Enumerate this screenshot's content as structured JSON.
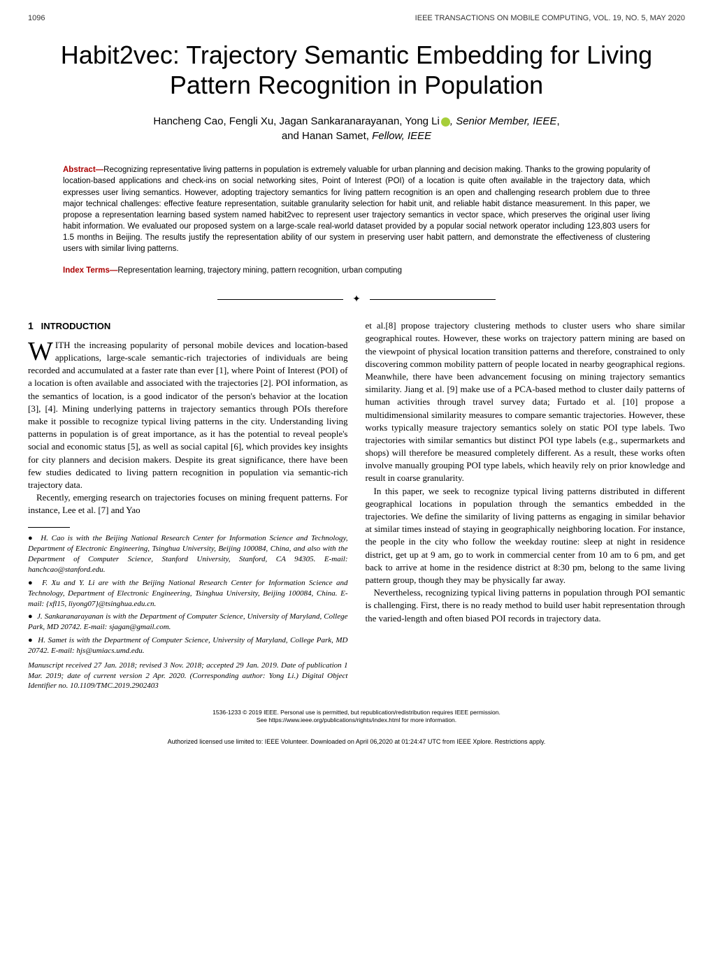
{
  "header": {
    "page_number": "1096",
    "journal": "IEEE TRANSACTIONS ON MOBILE COMPUTING, VOL. 19, NO. 5, MAY 2020"
  },
  "title": "Habit2vec: Trajectory Semantic Embedding for Living Pattern Recognition in Population",
  "authors": {
    "line1": "Hancheng Cao, Fengli Xu, Jagan Sankaranarayanan, Yong Li",
    "orcid": "●",
    "member1": ", Senior Member, IEEE",
    "line2": "and Hanan Samet, Fellow, IEEE"
  },
  "abstract_label": "Abstract—",
  "abstract_text": "Recognizing representative living patterns in population is extremely valuable for urban planning and decision making. Thanks to the growing popularity of location-based applications and check-ins on social networking sites, Point of Interest (POI) of a location is quite often available in the trajectory data, which expresses user living semantics. However, adopting trajectory semantics for living pattern recognition is an open and challenging research problem due to three major technical challenges: effective feature representation, suitable granularity selection for habit unit, and reliable habit distance measurement. In this paper, we propose a representation learning based system named habit2vec to represent user trajectory semantics in vector space, which preserves the original user living habit information. We evaluated our proposed system on a large-scale real-world dataset provided by a popular social network operator including 123,803 users for 1.5 months in Beijing. The results justify the representation ability of our system in preserving user habit pattern, and demonstrate the effectiveness of clustering users with similar living patterns.",
  "index_terms_label": "Index Terms—",
  "index_terms_text": "Representation learning, trajectory mining, pattern recognition, urban computing",
  "section1": {
    "number": "1",
    "title": "INTRODUCTION"
  },
  "col1": {
    "drop_cap": "W",
    "para1": "ITH the increasing popularity of personal mobile devices and location-based applications, large-scale semantic-rich trajectories of individuals are being recorded and accumulated at a faster rate than ever [1], where Point of Interest (POI) of a location is often available and associated with the trajectories [2]. POI information, as the semantics of location, is a good indicator of the person's behavior at the location [3], [4]. Mining underlying patterns in trajectory semantics through POIs therefore make it possible to recognize typical living patterns in the city. Understanding living patterns in population is of great importance, as it has the potential to reveal people's social and economic status [5], as well as social capital [6], which provides key insights for city planners and decision makers. Despite its great significance, there have been few studies dedicated to living pattern recognition in population via semantic-rich trajectory data.",
    "para2": "Recently, emerging research on trajectories focuses on mining frequent patterns. For instance, Lee et al. [7] and Yao"
  },
  "footnotes": {
    "f1": "H. Cao is with the Beijing National Research Center for Information Science and Technology, Department of Electronic Engineering, Tsinghua University, Beijing 100084, China, and also with the Department of Computer Science, Stanford University, Stanford, CA 94305. E-mail: hanchcao@stanford.edu.",
    "f2": "F. Xu and Y. Li are with the Beijing National Research Center for Information Science and Technology, Department of Electronic Engineering, Tsinghua University, Beijing 100084, China. E-mail: {xfl15, liyong07}@tsinghua.edu.cn.",
    "f3": "J. Sankaranarayanan is with the Department of Computer Science, University of Maryland, College Park, MD 20742. E-mail: sjagan@gmail.com.",
    "f4": "H. Samet is with the Department of Computer Science, University of Maryland, College Park, MD 20742. E-mail: hjs@umiacs.umd.edu.",
    "manuscript": "Manuscript received 27 Jan. 2018; revised 3 Nov. 2018; accepted 29 Jan. 2019. Date of publication 1 Mar. 2019; date of current version 2 Apr. 2020. (Corresponding author: Yong Li.) Digital Object Identifier no. 10.1109/TMC.2019.2902403"
  },
  "col2": {
    "para1": "et al.[8] propose trajectory clustering methods to cluster users who share similar geographical routes. However, these works on trajectory pattern mining are based on the viewpoint of physical location transition patterns and therefore, constrained to only discovering common mobility pattern of people located in nearby geographical regions. Meanwhile, there have been advancement focusing on mining trajectory semantics similarity. Jiang et al. [9] make use of a PCA-based method to cluster daily patterns of human activities through travel survey data; Furtado et al. [10] propose a multidimensional similarity measures to compare semantic trajectories. However, these works typically measure trajectory semantics solely on static POI type labels. Two trajectories with similar semantics but distinct POI type labels (e.g., supermarkets and shops) will therefore be measured completely different. As a result, these works often involve manually grouping POI type labels, which heavily rely on prior knowledge and result in coarse granularity.",
    "para2": "In this paper, we seek to recognize typical living patterns distributed in different geographical locations in population through the semantics embedded in the trajectories. We define the similarity of living patterns as engaging in similar behavior at similar times instead of staying in geographically neighboring location. For instance, the people in the city who follow the weekday routine: sleep at night in residence district, get up at 9 am, go to work in commercial center from 10 am to 6 pm, and get back to arrive at home in the residence district at 8:30 pm, belong to the same living pattern group, though they may be physically far away.",
    "para3": "Nevertheless, recognizing typical living patterns in population through POI semantic is challenging. First, there is no ready method to build user habit representation through the varied-length and often biased POI records in trajectory data."
  },
  "copyright": {
    "line1": "1536-1233 © 2019 IEEE. Personal use is permitted, but republication/redistribution requires IEEE permission.",
    "line2": "See https://www.ieee.org/publications/rights/index.html for more information."
  },
  "bottom_text": "Authorized licensed use limited to: IEEE Volunteer. Downloaded on April 06,2020 at 01:24:47 UTC from IEEE Xplore. Restrictions apply."
}
